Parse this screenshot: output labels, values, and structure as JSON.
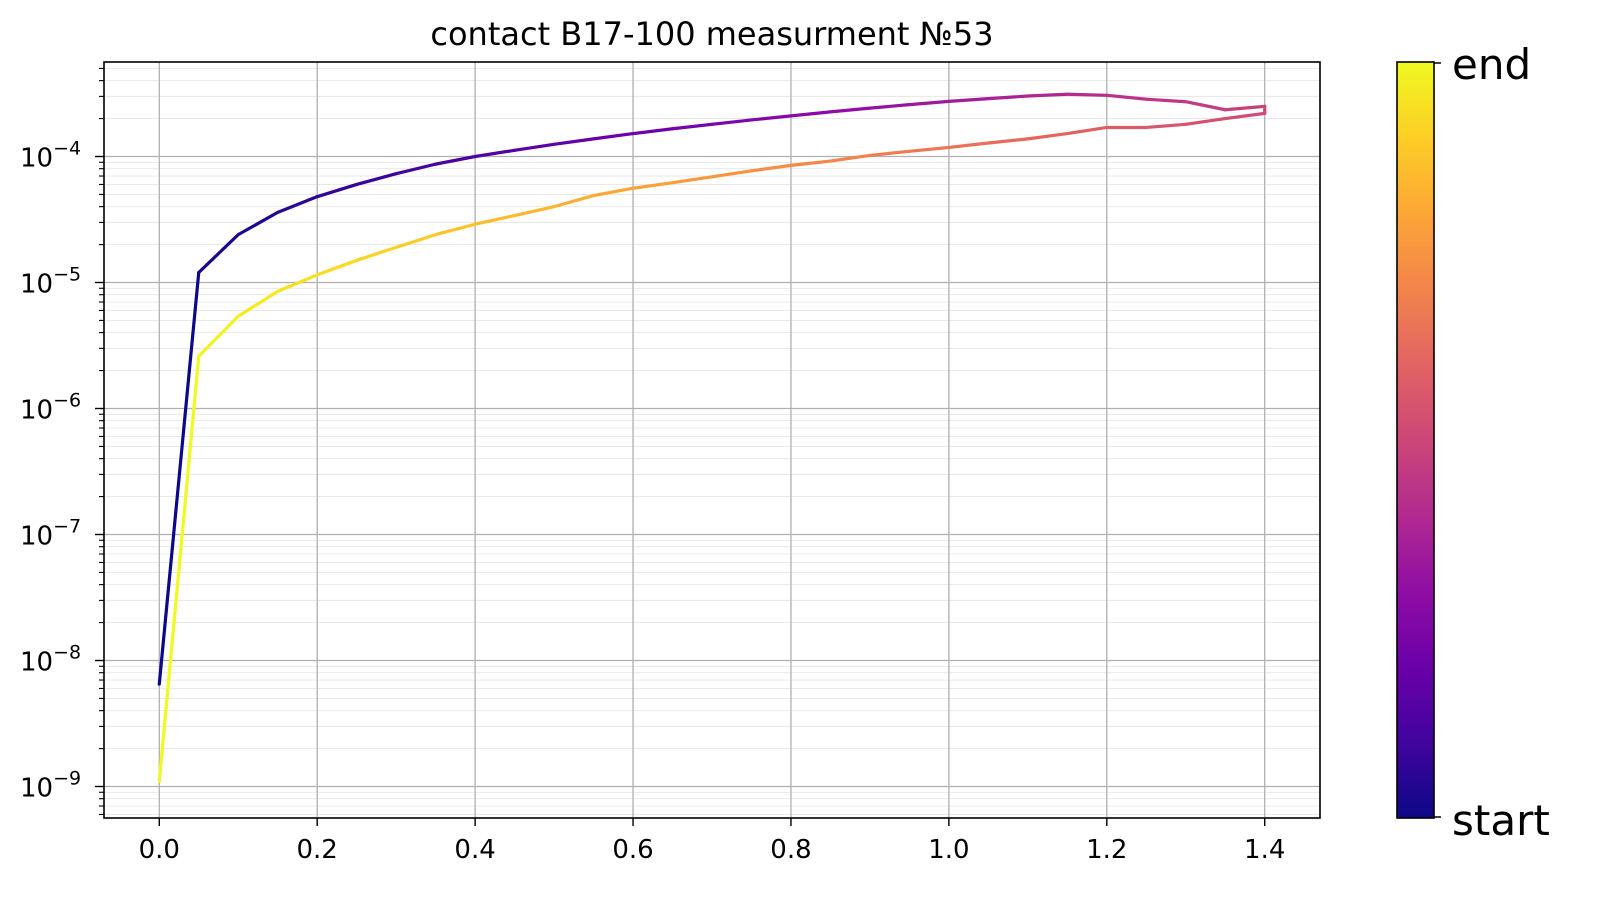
{
  "chart_data": {
    "type": "line",
    "title": "contact B17-100 measurment №53",
    "xlabel": "",
    "ylabel": "",
    "xlim": [
      -0.07,
      1.47
    ],
    "ylim_log10": [
      -9.25,
      -3.25
    ],
    "yscale": "log",
    "grid": {
      "major": true,
      "minor_y": true
    },
    "x_ticks": [
      "0.0",
      "0.2",
      "0.4",
      "0.6",
      "0.8",
      "1.0",
      "1.2",
      "1.4"
    ],
    "y_ticks": [
      {
        "exp": -9,
        "base": "10",
        "sup": "−9"
      },
      {
        "exp": -8,
        "base": "10",
        "sup": "−8"
      },
      {
        "exp": -7,
        "base": "10",
        "sup": "−7"
      },
      {
        "exp": -6,
        "base": "10",
        "sup": "−6"
      },
      {
        "exp": -5,
        "base": "10",
        "sup": "−5"
      },
      {
        "exp": -4,
        "base": "10",
        "sup": "−4"
      }
    ],
    "colormap": "plasma",
    "colorbar": {
      "start_label": "start",
      "end_label": "end"
    },
    "sweep": [
      [
        0.0,
        6.5e-09
      ],
      [
        0.05,
        1.2e-05
      ],
      [
        0.1,
        2.4e-05
      ],
      [
        0.15,
        3.6e-05
      ],
      [
        0.2,
        4.8e-05
      ],
      [
        0.25,
        6e-05
      ],
      [
        0.3,
        7.3e-05
      ],
      [
        0.35,
        8.7e-05
      ],
      [
        0.4,
        0.0001
      ],
      [
        0.45,
        0.000112
      ],
      [
        0.5,
        0.000125
      ],
      [
        0.55,
        0.000138
      ],
      [
        0.6,
        0.000152
      ],
      [
        0.65,
        0.000166
      ],
      [
        0.7,
        0.00018
      ],
      [
        0.75,
        0.000195
      ],
      [
        0.8,
        0.00021
      ],
      [
        0.85,
        0.000226
      ],
      [
        0.9,
        0.000242
      ],
      [
        0.95,
        0.000258
      ],
      [
        1.0,
        0.000274
      ],
      [
        1.05,
        0.000288
      ],
      [
        1.1,
        0.000302
      ],
      [
        1.15,
        0.000312
      ],
      [
        1.2,
        0.000306
      ],
      [
        1.25,
        0.000285
      ],
      [
        1.3,
        0.000272
      ],
      [
        1.35,
        0.000235
      ],
      [
        1.4,
        0.00025
      ],
      [
        1.4,
        0.00022
      ],
      [
        1.35,
        0.0002
      ],
      [
        1.3,
        0.00018
      ],
      [
        1.25,
        0.00017
      ],
      [
        1.2,
        0.00017
      ],
      [
        1.15,
        0.000152
      ],
      [
        1.1,
        0.000138
      ],
      [
        1.05,
        0.000128
      ],
      [
        1.0,
        0.000118
      ],
      [
        0.95,
        0.00011
      ],
      [
        0.9,
        0.000102
      ],
      [
        0.85,
        9.2e-05
      ],
      [
        0.8,
        8.5e-05
      ],
      [
        0.75,
        7.7e-05
      ],
      [
        0.7,
        6.9e-05
      ],
      [
        0.65,
        6.2e-05
      ],
      [
        0.6,
        5.6e-05
      ],
      [
        0.55,
        4.9e-05
      ],
      [
        0.5,
        4e-05
      ],
      [
        0.45,
        3.4e-05
      ],
      [
        0.4,
        2.9e-05
      ],
      [
        0.35,
        2.4e-05
      ],
      [
        0.3,
        1.9e-05
      ],
      [
        0.25,
        1.5e-05
      ],
      [
        0.2,
        1.15e-05
      ],
      [
        0.15,
        8.5e-06
      ],
      [
        0.1,
        5.4e-06
      ],
      [
        0.05,
        2.6e-06
      ],
      [
        0.0,
        1.1e-09
      ]
    ]
  }
}
